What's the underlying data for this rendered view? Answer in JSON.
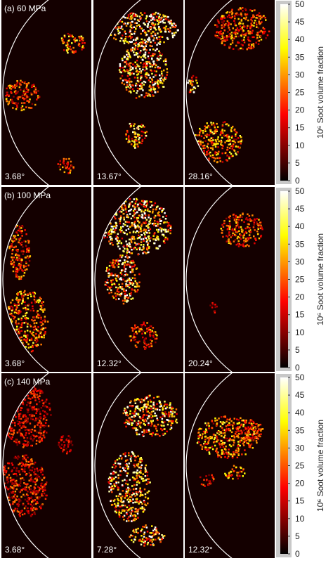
{
  "rows": [
    {
      "label": "(a) 60 MPa",
      "panels": [
        "3.68°",
        "13.67°",
        "28.16°"
      ]
    },
    {
      "label": "(b) 100 MPa",
      "panels": [
        "3.68°",
        "12.32°",
        "20.24°"
      ]
    },
    {
      "label": "(c) 140 MPa",
      "panels": [
        "3.68°",
        "7.28°",
        "12.32°"
      ]
    }
  ],
  "colorbar": {
    "label": "10⁶ Soot volume fraction",
    "colormap": "hot",
    "lim": [
      0,
      50
    ],
    "ticks": [
      0,
      5,
      10,
      15,
      20,
      25,
      30,
      35,
      40,
      45,
      50
    ]
  }
}
